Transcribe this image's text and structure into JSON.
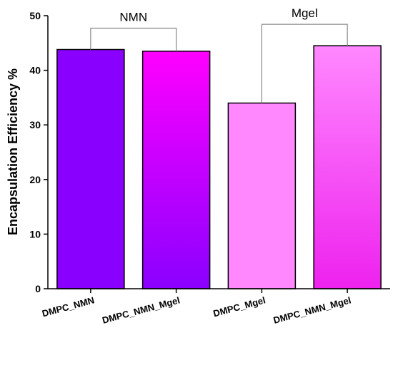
{
  "chart_data": {
    "type": "bar",
    "title": "",
    "xlabel": "",
    "ylabel": "Encapsulation Efficiency %",
    "ylim": [
      0,
      50
    ],
    "yticks": [
      0,
      10,
      20,
      30,
      40,
      50
    ],
    "grid": false,
    "categories": [
      "DMPC_NMN",
      "DMPC_NMN_Mgel",
      "DMPC_Mgel",
      "DMPC_NMN_Mgel"
    ],
    "values": [
      43.8,
      43.5,
      34.0,
      44.5
    ],
    "bar_colors": [
      {
        "top": "#8A00FF",
        "bottom": "#8A00FF"
      },
      {
        "top": "#FF00FF",
        "bottom": "#8A00FF"
      },
      {
        "top": "#FF88FF",
        "bottom": "#FF88FF"
      },
      {
        "top": "#FF88FF",
        "bottom": "#EE22EE"
      }
    ],
    "annotations": [
      {
        "label": "NMN",
        "bars": [
          0,
          1
        ]
      },
      {
        "label": "Mgel",
        "bars": [
          2,
          3
        ]
      }
    ]
  }
}
